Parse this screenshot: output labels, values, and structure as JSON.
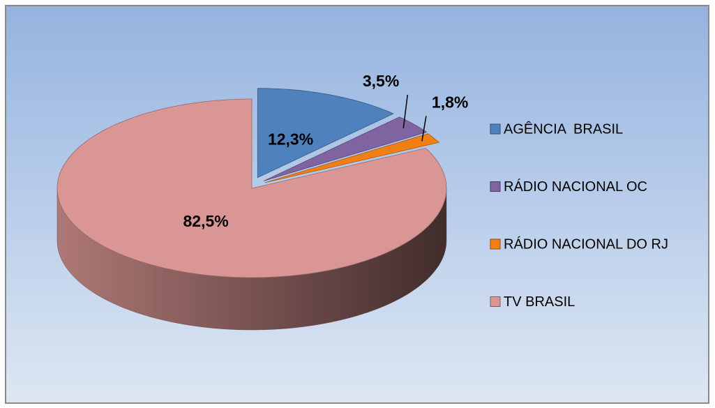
{
  "chart_data": {
    "type": "pie",
    "categories": [
      "AGÊNCIA  BRASIL",
      "RÁDIO NACIONAL OC",
      "RÁDIO NACIONAL DO RJ",
      "TV BRASIL"
    ],
    "values": [
      12.3,
      3.5,
      1.8,
      82.5
    ],
    "value_labels": [
      "12,3%",
      "3,5%",
      "1,8%",
      "82,5%"
    ],
    "colors": [
      "#4f81bd",
      "#8064a2",
      "#f07f16",
      "#d99694"
    ],
    "legend": "right",
    "three_d": true
  }
}
